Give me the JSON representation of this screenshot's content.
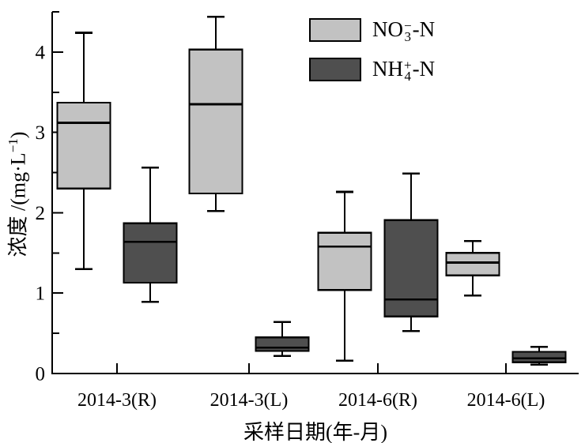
{
  "figure": {
    "background": "#ffffff",
    "axis_color": "#000000"
  },
  "y_axis": {
    "title_prefix": "浓度 /(mg·L",
    "title_sup": "−1",
    "title_suffix": ")",
    "tick_labels": [
      "0",
      "1",
      "2",
      "3",
      "4"
    ]
  },
  "x_axis": {
    "title": "采样日期(年-月)",
    "tick_labels": [
      "2014-3(R)",
      "2014-3(L)",
      "2014-6(R)",
      "2014-6(L)"
    ]
  },
  "legend": {
    "items": [
      {
        "main": "NO",
        "sup": "−",
        "sub": "3",
        "suffix": "-N",
        "color": "#c2c2c2"
      },
      {
        "main": "NH",
        "sup": "+",
        "sub": "4",
        "suffix": "-N",
        "color": "#4f4f4f"
      }
    ]
  },
  "chart_data": {
    "type": "boxplot",
    "title": "",
    "xlabel": "采样日期(年-月)",
    "ylabel": "浓度/(mg·L−1)",
    "ylim": [
      0,
      4.5
    ],
    "yticks": [
      0,
      1,
      2,
      3,
      4
    ],
    "yticks_minor": [
      0.5,
      1.5,
      2.5,
      3.5,
      4.5
    ],
    "grid": false,
    "legend_position": "top-right-inside",
    "categories": [
      "2014-3(R)",
      "2014-3(L)",
      "2014-6(R)",
      "2014-6(L)"
    ],
    "series": [
      {
        "name": "NO3−-N",
        "color": "#c2c2c2",
        "boxes": [
          {
            "whisker_low": 1.3,
            "q1": 2.3,
            "median": 3.12,
            "q3": 3.37,
            "whisker_high": 4.24
          },
          {
            "whisker_low": 2.02,
            "q1": 2.24,
            "median": 3.35,
            "q3": 4.03,
            "whisker_high": 4.44
          },
          {
            "whisker_low": 0.16,
            "q1": 1.04,
            "median": 1.58,
            "q3": 1.75,
            "whisker_high": 2.26
          },
          {
            "whisker_low": 0.97,
            "q1": 1.22,
            "median": 1.38,
            "q3": 1.5,
            "whisker_high": 1.65
          }
        ]
      },
      {
        "name": "NH4+-N",
        "color": "#4f4f4f",
        "boxes": [
          {
            "whisker_low": 0.89,
            "q1": 1.13,
            "median": 1.64,
            "q3": 1.87,
            "whisker_high": 2.56
          },
          {
            "whisker_low": 0.22,
            "q1": 0.28,
            "median": 0.32,
            "q3": 0.45,
            "whisker_high": 0.64
          },
          {
            "whisker_low": 0.53,
            "q1": 0.71,
            "median": 0.92,
            "q3": 1.91,
            "whisker_high": 2.49
          },
          {
            "whisker_low": 0.11,
            "q1": 0.14,
            "median": 0.19,
            "q3": 0.27,
            "whisker_high": 0.33
          }
        ]
      }
    ]
  }
}
